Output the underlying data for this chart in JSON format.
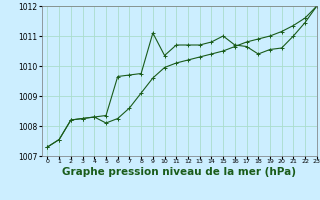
{
  "title": "Graphe pression niveau de la mer (hPa)",
  "title_fontsize": 7.5,
  "bg_color": "#cceeff",
  "line_color": "#1a5c1a",
  "grid_color": "#aaddcc",
  "xlim": [
    -0.5,
    23
  ],
  "ylim": [
    1007,
    1012
  ],
  "yticks": [
    1007,
    1008,
    1009,
    1010,
    1011,
    1012
  ],
  "xticks": [
    0,
    1,
    2,
    3,
    4,
    5,
    6,
    7,
    8,
    9,
    10,
    11,
    12,
    13,
    14,
    15,
    16,
    17,
    18,
    19,
    20,
    21,
    22,
    23
  ],
  "line1_x": [
    0,
    1,
    2,
    3,
    4,
    5,
    6,
    7,
    8,
    9,
    10,
    11,
    12,
    13,
    14,
    15,
    16,
    17,
    18,
    19,
    20,
    21,
    22,
    23
  ],
  "line1_y": [
    1007.3,
    1007.55,
    1008.2,
    1008.25,
    1008.3,
    1008.35,
    1009.65,
    1009.7,
    1009.75,
    1011.1,
    1010.35,
    1010.7,
    1010.7,
    1010.7,
    1010.8,
    1011.0,
    1010.7,
    1010.65,
    1010.4,
    1010.55,
    1010.6,
    1011.0,
    1011.45,
    1012.0
  ],
  "line2_x": [
    0,
    1,
    2,
    3,
    4,
    5,
    6,
    7,
    8,
    9,
    10,
    11,
    12,
    13,
    14,
    15,
    16,
    17,
    18,
    19,
    20,
    21,
    22,
    23
  ],
  "line2_y": [
    1007.3,
    1007.55,
    1008.2,
    1008.25,
    1008.3,
    1008.1,
    1008.25,
    1008.6,
    1009.1,
    1009.6,
    1009.95,
    1010.1,
    1010.2,
    1010.3,
    1010.4,
    1010.5,
    1010.65,
    1010.8,
    1010.9,
    1011.0,
    1011.15,
    1011.35,
    1011.6,
    1012.0
  ]
}
